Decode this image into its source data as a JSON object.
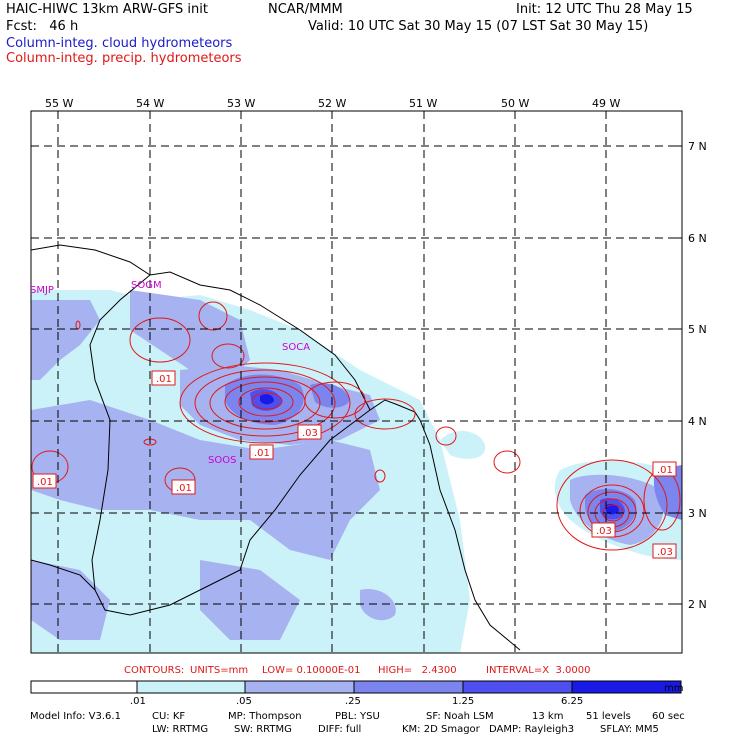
{
  "header": {
    "model_title": "HAIC-HIWC 13km ARW-GFS init",
    "org": "NCAR/MMM",
    "init": "Init: 12 UTC Thu 28 May 15",
    "fcst": "Fcst:   46 h",
    "valid": "Valid: 10 UTC Sat 30 May 15 (07 LST Sat 30 May 15)",
    "field1": "Column-integ. cloud hydrometeors",
    "field2": "Column-integ. precip. hydrometeors"
  },
  "colors": {
    "field1": "#1a1acc",
    "field2": "#e01818",
    "station": "#cc00cc",
    "shade": [
      "#ffffff",
      "#ccf2f9",
      "#a6b3f0",
      "#7c84ee",
      "#4f4ff0",
      "#1a1ae6"
    ]
  },
  "lon_labels": [
    "55 W",
    "54 W",
    "53 W",
    "52 W",
    "51 W",
    "50 W",
    "49 W"
  ],
  "lat_labels": [
    "7 N",
    "6 N",
    "5 N",
    "4 N",
    "3 N",
    "2 N"
  ],
  "stations": [
    "SMJP",
    "SOGM",
    "SOCA",
    "SOOS"
  ],
  "contour_labels": [
    ".01",
    ".03",
    ".01",
    ".01",
    ".01",
    ".01",
    ".03",
    ".03"
  ],
  "contour_info": {
    "contours": "CONTOURS:",
    "units": "UNITS=mm",
    "low": "LOW= 0.10000E-01",
    "high": "HIGH=   2.4300",
    "interval": "INTERVAL=X  3.0000"
  },
  "colorbar": {
    "ticks": [
      ".01",
      ".05",
      ".25",
      "1.25",
      "6.25"
    ],
    "unit": "mm"
  },
  "footer": {
    "line1": [
      "Model Info: V3.6.1",
      "CU: KF",
      "MP: Thompson",
      "PBL: YSU",
      "SF: Noah LSM",
      "13 km",
      "51 levels",
      "60 sec"
    ],
    "line2": [
      "LW: RRTMG",
      "SW: RRTMG",
      "DIFF: full",
      "KM: 2D Smagor",
      "DAMP: Rayleigh3",
      "SFLAY: MM5"
    ]
  }
}
